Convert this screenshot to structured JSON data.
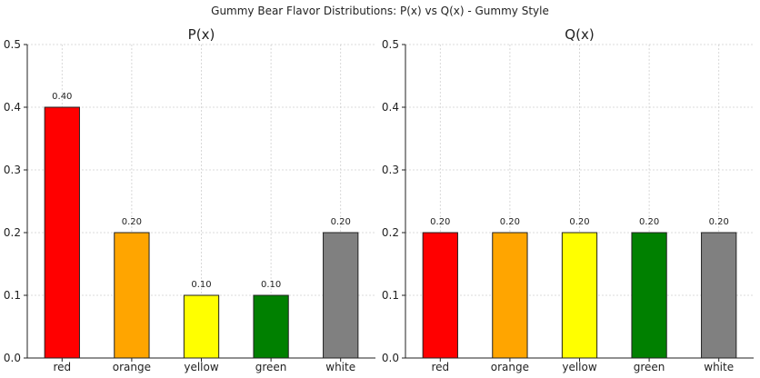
{
  "figure": {
    "title": "Gummy Bear Flavor Distributions: P(x) vs Q(x) - Gummy Style"
  },
  "chart_data": [
    {
      "type": "bar",
      "title": "P(x)",
      "xlabel": "",
      "ylabel": "",
      "categories": [
        "red",
        "orange",
        "yellow",
        "green",
        "white"
      ],
      "values": [
        0.4,
        0.2,
        0.1,
        0.1,
        0.2
      ],
      "data_labels": [
        "0.40",
        "0.20",
        "0.10",
        "0.10",
        "0.20"
      ],
      "colors": [
        "#ff0000",
        "#ffa500",
        "#ffff00",
        "#008000",
        "#808080"
      ],
      "ylim": [
        0,
        0.5
      ],
      "yticks": [
        "0.0",
        "0.1",
        "0.2",
        "0.3",
        "0.4",
        "0.5"
      ],
      "grid": true
    },
    {
      "type": "bar",
      "title": "Q(x)",
      "xlabel": "",
      "ylabel": "",
      "categories": [
        "red",
        "orange",
        "yellow",
        "green",
        "white"
      ],
      "values": [
        0.2,
        0.2,
        0.2,
        0.2,
        0.2
      ],
      "data_labels": [
        "0.20",
        "0.20",
        "0.20",
        "0.20",
        "0.20"
      ],
      "colors": [
        "#ff0000",
        "#ffa500",
        "#ffff00",
        "#008000",
        "#808080"
      ],
      "ylim": [
        0,
        0.5
      ],
      "yticks": [
        "0.0",
        "0.1",
        "0.2",
        "0.3",
        "0.4",
        "0.5"
      ],
      "grid": true
    }
  ]
}
